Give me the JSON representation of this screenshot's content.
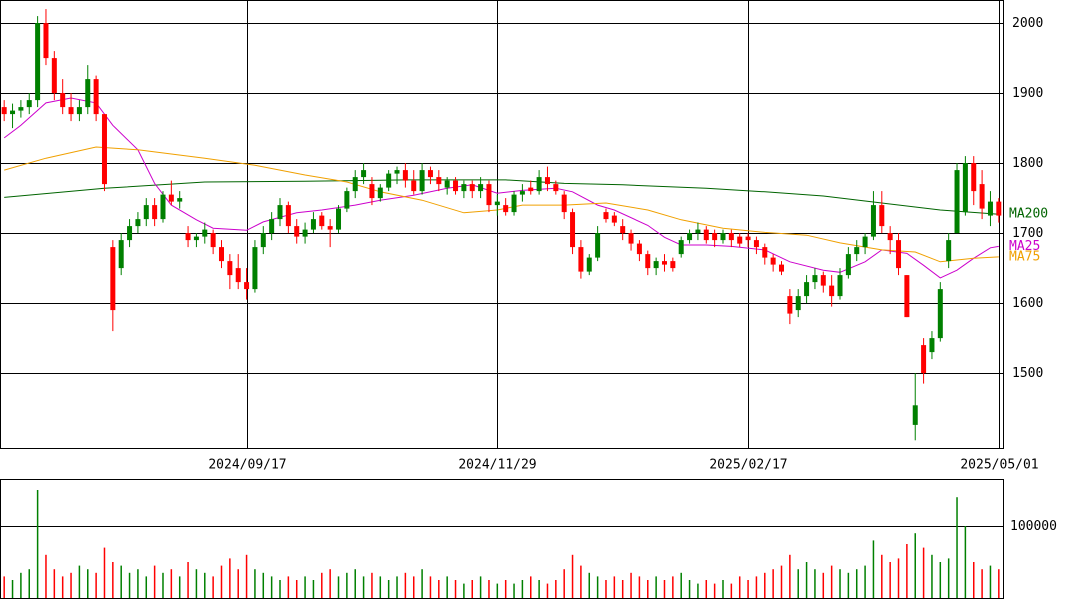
{
  "chart_data": [
    {
      "type": "candlestick",
      "categories": [
        null,
        null,
        null,
        null,
        null,
        null,
        null,
        null,
        null,
        null,
        null,
        null,
        null,
        null,
        null,
        null,
        null,
        null,
        null,
        null,
        null,
        null,
        null,
        null,
        null,
        null,
        null,
        null,
        null,
        "2024/09/17",
        null,
        null,
        null,
        null,
        null,
        null,
        null,
        null,
        null,
        null,
        null,
        null,
        null,
        null,
        null,
        null,
        null,
        null,
        null,
        null,
        null,
        null,
        null,
        null,
        null,
        null,
        null,
        null,
        null,
        "2024/11/29",
        null,
        null,
        null,
        null,
        null,
        null,
        null,
        null,
        null,
        null,
        null,
        null,
        null,
        null,
        null,
        null,
        null,
        null,
        null,
        null,
        null,
        null,
        null,
        null,
        null,
        null,
        null,
        null,
        null,
        "2025/02/17",
        null,
        null,
        null,
        null,
        null,
        null,
        null,
        null,
        null,
        null,
        null,
        null,
        null,
        null,
        null,
        null,
        null,
        null,
        null,
        null,
        null,
        null,
        null,
        null,
        null,
        null,
        null,
        null,
        null,
        "2025/05/01"
      ],
      "candles": [
        [
          1880,
          1890,
          1860,
          1870
        ],
        [
          1870,
          1885,
          1850,
          1875
        ],
        [
          1875,
          1890,
          1865,
          1880
        ],
        [
          1880,
          1900,
          1870,
          1890
        ],
        [
          1890,
          2010,
          1880,
          2000
        ],
        [
          2000,
          2020,
          1940,
          1950
        ],
        [
          1950,
          1960,
          1890,
          1900
        ],
        [
          1900,
          1920,
          1870,
          1880
        ],
        [
          1880,
          1900,
          1860,
          1870
        ],
        [
          1870,
          1890,
          1860,
          1880
        ],
        [
          1880,
          1940,
          1870,
          1920
        ],
        [
          1920,
          1925,
          1860,
          1870
        ],
        [
          1870,
          1870,
          1760,
          1770
        ],
        [
          1680,
          1690,
          1560,
          1590
        ],
        [
          1650,
          1700,
          1640,
          1690
        ],
        [
          1690,
          1720,
          1680,
          1710
        ],
        [
          1710,
          1730,
          1700,
          1720
        ],
        [
          1720,
          1750,
          1710,
          1740
        ],
        [
          1740,
          1750,
          1710,
          1720
        ],
        [
          1720,
          1760,
          1715,
          1755
        ],
        [
          1755,
          1775,
          1740,
          1745
        ],
        [
          1745,
          1760,
          1735,
          1750
        ],
        [
          1700,
          1710,
          1680,
          1690
        ],
        [
          1690,
          1700,
          1680,
          1695
        ],
        [
          1695,
          1715,
          1685,
          1705
        ],
        [
          1700,
          1705,
          1670,
          1680
        ],
        [
          1680,
          1690,
          1650,
          1660
        ],
        [
          1660,
          1670,
          1620,
          1640
        ],
        [
          1650,
          1670,
          1620,
          1630
        ],
        [
          1630,
          1650,
          1605,
          1620
        ],
        [
          1620,
          1690,
          1615,
          1680
        ],
        [
          1680,
          1710,
          1670,
          1700
        ],
        [
          1700,
          1730,
          1690,
          1720
        ],
        [
          1720,
          1750,
          1710,
          1740
        ],
        [
          1740,
          1745,
          1700,
          1710
        ],
        [
          1710,
          1720,
          1685,
          1695
        ],
        [
          1695,
          1715,
          1685,
          1705
        ],
        [
          1705,
          1730,
          1700,
          1720
        ],
        [
          1725,
          1730,
          1705,
          1710
        ],
        [
          1710,
          1720,
          1680,
          1705
        ],
        [
          1705,
          1740,
          1700,
          1735
        ],
        [
          1735,
          1765,
          1730,
          1760
        ],
        [
          1760,
          1790,
          1750,
          1780
        ],
        [
          1780,
          1800,
          1770,
          1790
        ],
        [
          1770,
          1780,
          1740,
          1750
        ],
        [
          1750,
          1770,
          1745,
          1765
        ],
        [
          1765,
          1790,
          1760,
          1785
        ],
        [
          1785,
          1795,
          1770,
          1790
        ],
        [
          1790,
          1800,
          1765,
          1775
        ],
        [
          1775,
          1790,
          1755,
          1760
        ],
        [
          1760,
          1800,
          1755,
          1790
        ],
        [
          1790,
          1795,
          1770,
          1780
        ],
        [
          1780,
          1790,
          1760,
          1770
        ],
        [
          1765,
          1780,
          1755,
          1775
        ],
        [
          1775,
          1780,
          1755,
          1760
        ],
        [
          1760,
          1775,
          1750,
          1770
        ],
        [
          1770,
          1775,
          1750,
          1760
        ],
        [
          1760,
          1780,
          1750,
          1770
        ],
        [
          1770,
          1775,
          1730,
          1740
        ],
        [
          1740,
          1755,
          1725,
          1745
        ],
        [
          1740,
          1750,
          1725,
          1730
        ],
        [
          1730,
          1760,
          1725,
          1755
        ],
        [
          1755,
          1770,
          1745,
          1760
        ],
        [
          1765,
          1775,
          1755,
          1760
        ],
        [
          1760,
          1790,
          1755,
          1780
        ],
        [
          1780,
          1795,
          1760,
          1770
        ],
        [
          1770,
          1775,
          1755,
          1760
        ],
        [
          1755,
          1760,
          1720,
          1730
        ],
        [
          1730,
          1735,
          1670,
          1680
        ],
        [
          1680,
          1690,
          1635,
          1645
        ],
        [
          1645,
          1670,
          1640,
          1665
        ],
        [
          1665,
          1710,
          1660,
          1700
        ],
        [
          1730,
          1735,
          1715,
          1720
        ],
        [
          1725,
          1730,
          1710,
          1715
        ],
        [
          1710,
          1720,
          1690,
          1700
        ],
        [
          1700,
          1705,
          1675,
          1685
        ],
        [
          1685,
          1690,
          1660,
          1670
        ],
        [
          1670,
          1675,
          1640,
          1650
        ],
        [
          1650,
          1665,
          1640,
          1660
        ],
        [
          1660,
          1670,
          1645,
          1655
        ],
        [
          1660,
          1665,
          1645,
          1650
        ],
        [
          1670,
          1695,
          1665,
          1690
        ],
        [
          1690,
          1705,
          1685,
          1700
        ],
        [
          1700,
          1715,
          1690,
          1705
        ],
        [
          1705,
          1710,
          1685,
          1690
        ],
        [
          1700,
          1705,
          1680,
          1690
        ],
        [
          1690,
          1705,
          1685,
          1700
        ],
        [
          1700,
          1705,
          1680,
          1690
        ],
        [
          1695,
          1700,
          1680,
          1685
        ],
        [
          1695,
          1700,
          1680,
          1690
        ],
        [
          1690,
          1695,
          1670,
          1680
        ],
        [
          1680,
          1685,
          1655,
          1665
        ],
        [
          1665,
          1670,
          1645,
          1655
        ],
        [
          1655,
          1660,
          1640,
          1645
        ],
        [
          1610,
          1620,
          1570,
          1585
        ],
        [
          1590,
          1620,
          1580,
          1610
        ],
        [
          1610,
          1640,
          1600,
          1630
        ],
        [
          1630,
          1650,
          1620,
          1640
        ],
        [
          1640,
          1645,
          1615,
          1625
        ],
        [
          1625,
          1640,
          1595,
          1610
        ],
        [
          1610,
          1650,
          1605,
          1640
        ],
        [
          1640,
          1680,
          1635,
          1670
        ],
        [
          1670,
          1690,
          1660,
          1680
        ],
        [
          1680,
          1700,
          1670,
          1695
        ],
        [
          1695,
          1760,
          1690,
          1740
        ],
        [
          1740,
          1760,
          1700,
          1710
        ],
        [
          1700,
          1710,
          1670,
          1690
        ],
        [
          1690,
          1700,
          1640,
          1650
        ],
        [
          1640,
          1640,
          1580,
          1580
        ],
        [
          1426,
          1500,
          1404,
          1454
        ],
        [
          1540,
          1550,
          1485,
          1500
        ],
        [
          1530,
          1560,
          1520,
          1550
        ],
        [
          1550,
          1630,
          1545,
          1620
        ],
        [
          1660,
          1700,
          1650,
          1690
        ],
        [
          1700,
          1800,
          1700,
          1790
        ],
        [
          1730,
          1810,
          1725,
          1800
        ],
        [
          1800,
          1810,
          1740,
          1760
        ],
        [
          1770,
          1790,
          1720,
          1735
        ],
        [
          1725,
          1760,
          1710,
          1745
        ],
        [
          1745,
          1750,
          1715,
          1725
        ]
      ],
      "up_color": "#008000",
      "down_color": "#ff0000",
      "series": [
        {
          "name": "MA200",
          "color": "#006400",
          "x": [
            0,
            12,
            24,
            36,
            48,
            60,
            67,
            74,
            84,
            91,
            98,
            105,
            112,
            119
          ],
          "values": [
            1751,
            1764,
            1773,
            1774,
            1776,
            1776,
            1771,
            1769,
            1764,
            1759,
            1753,
            1743,
            1733,
            1727
          ]
        },
        {
          "name": "MA25",
          "color": "#cc00cc",
          "x": [
            0,
            2,
            5,
            8,
            11,
            13,
            16,
            18,
            20,
            23,
            25,
            29,
            31,
            35,
            38,
            42,
            45,
            49,
            53,
            56,
            59,
            62,
            66,
            68,
            71,
            73,
            77,
            79,
            81,
            84,
            87,
            91,
            94,
            98,
            100,
            103,
            105,
            108,
            110,
            112,
            114,
            116,
            118,
            119
          ],
          "values": [
            1836,
            1854,
            1886,
            1893,
            1886,
            1854,
            1819,
            1771,
            1740,
            1719,
            1707,
            1704,
            1716,
            1729,
            1733,
            1740,
            1747,
            1754,
            1764,
            1769,
            1757,
            1761,
            1764,
            1759,
            1740,
            1733,
            1711,
            1694,
            1683,
            1683,
            1681,
            1676,
            1659,
            1647,
            1644,
            1659,
            1676,
            1671,
            1654,
            1636,
            1647,
            1664,
            1679,
            1681
          ]
        },
        {
          "name": "MA75",
          "color": "#f0a000",
          "x": [
            0,
            5,
            11,
            16,
            24,
            30,
            36,
            41,
            45,
            50,
            55,
            59,
            62,
            67,
            72,
            77,
            81,
            86,
            91,
            96,
            100,
            105,
            109,
            112,
            116,
            119
          ],
          "values": [
            1790,
            1807,
            1823,
            1819,
            1807,
            1797,
            1783,
            1773,
            1759,
            1747,
            1729,
            1733,
            1740,
            1740,
            1743,
            1733,
            1719,
            1707,
            1701,
            1697,
            1686,
            1676,
            1673,
            1659,
            1664,
            1666
          ]
        }
      ],
      "ylim": [
        1393,
        2033
      ],
      "yticks": [
        1500,
        1600,
        1700,
        1800,
        1900,
        2000
      ],
      "grid": true
    },
    {
      "type": "bar",
      "values": [
        30000,
        25000,
        35000,
        40000,
        150000,
        60000,
        40000,
        30000,
        35000,
        45000,
        40000,
        35000,
        70000,
        50000,
        45000,
        35000,
        40000,
        30000,
        45000,
        35000,
        40000,
        30000,
        50000,
        40000,
        35000,
        30000,
        45000,
        55000,
        40000,
        60000,
        40000,
        35000,
        30000,
        25000,
        30000,
        25000,
        30000,
        25000,
        35000,
        40000,
        30000,
        35000,
        40000,
        30000,
        35000,
        30000,
        25000,
        30000,
        35000,
        30000,
        40000,
        30000,
        25000,
        30000,
        25000,
        20000,
        25000,
        30000,
        25000,
        20000,
        25000,
        20000,
        25000,
        30000,
        25000,
        20000,
        25000,
        40000,
        60000,
        45000,
        35000,
        30000,
        25000,
        30000,
        25000,
        35000,
        30000,
        25000,
        30000,
        25000,
        30000,
        35000,
        25000,
        20000,
        25000,
        20000,
        25000,
        20000,
        30000,
        25000,
        30000,
        35000,
        40000,
        45000,
        60000,
        40000,
        50000,
        40000,
        35000,
        45000,
        40000,
        35000,
        40000,
        45000,
        80000,
        60000,
        50000,
        55000,
        75000,
        90000,
        70000,
        60000,
        50000,
        55000,
        140000,
        100000,
        50000,
        40000,
        45000,
        40000
      ],
      "ylim": [
        0,
        163889
      ],
      "yticks": [
        100000
      ],
      "grid": true
    }
  ]
}
